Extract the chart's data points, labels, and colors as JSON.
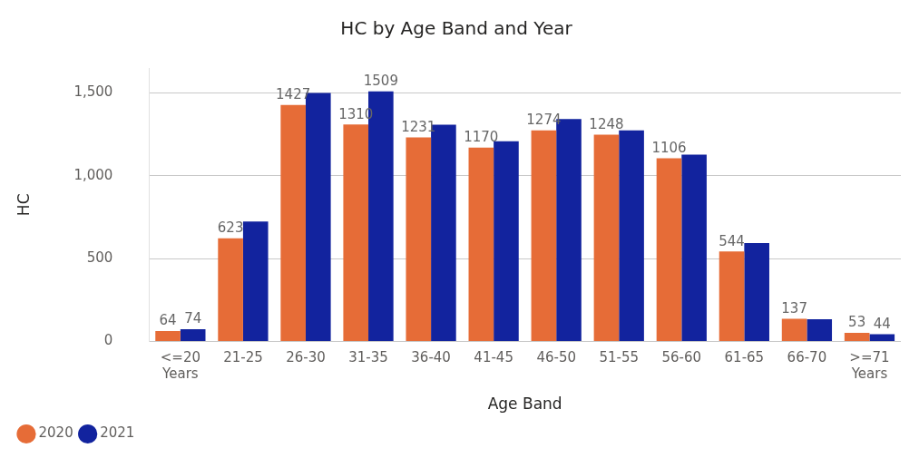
{
  "chart_data": {
    "type": "bar",
    "title": "HC by Age Band and Year",
    "xlabel": "Age Band",
    "ylabel": "HC",
    "categories": [
      "<=20 Years",
      "21-25",
      "26-30",
      "31-35",
      "36-40",
      "41-45",
      "46-50",
      "51-55",
      "56-60",
      "61-65",
      "66-70",
      ">=71 Years"
    ],
    "series": [
      {
        "name": "2020",
        "color": "#e66c37",
        "values": [
          64,
          623,
          1427,
          1310,
          1231,
          1170,
          1274,
          1248,
          1106,
          544,
          137,
          53
        ],
        "value_labels": [
          "64",
          "623",
          "1427",
          "1310",
          "1231",
          "1170",
          "1274",
          "1248",
          "1106",
          "544",
          "137",
          "53"
        ]
      },
      {
        "name": "2021",
        "color": "#12239e",
        "values": [
          74,
          724,
          1500,
          1509,
          1308,
          1208,
          1342,
          1274,
          1128,
          594,
          134,
          44
        ],
        "value_labels": [
          "74",
          null,
          null,
          "1509",
          null,
          null,
          null,
          null,
          null,
          null,
          null,
          "44"
        ]
      }
    ],
    "ylim": [
      0,
      1650
    ],
    "yticks": [
      {
        "value": 0,
        "label": "0"
      },
      {
        "value": 500,
        "label": "500"
      },
      {
        "value": 1000,
        "label": "1,000"
      },
      {
        "value": 1500,
        "label": "1,500"
      }
    ],
    "grid": "y",
    "legend": "bottom left"
  }
}
